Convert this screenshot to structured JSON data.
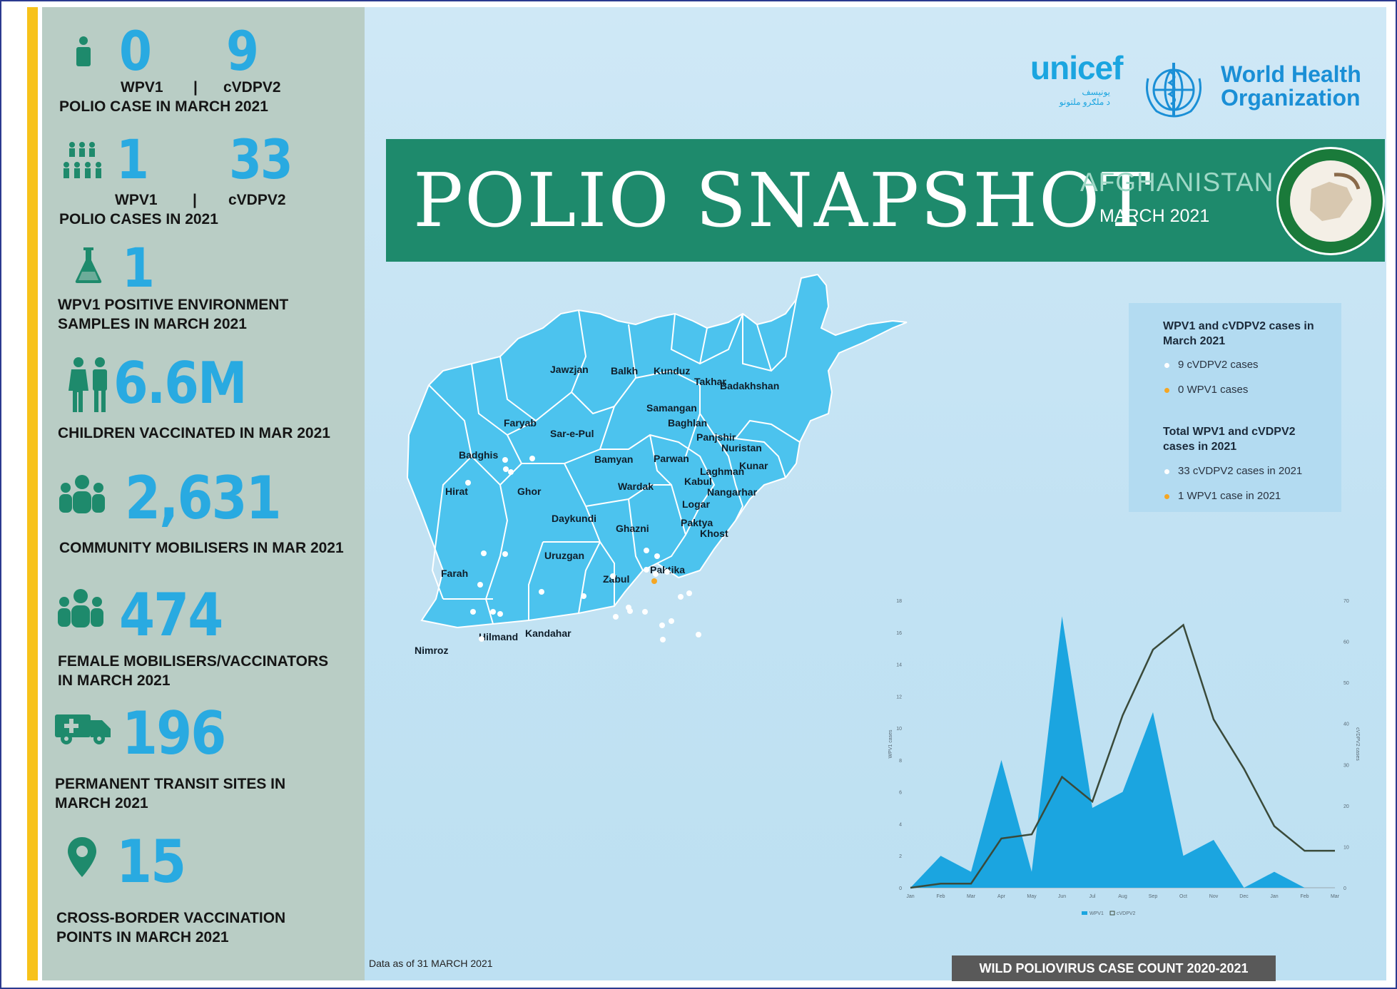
{
  "sidebar": {
    "stats": [
      {
        "a_value": "0",
        "a_label": "WPV1",
        "separator": "|",
        "b_value": "9",
        "b_label": "cVDPV2",
        "caption": "POLIO CASE IN MARCH 2021"
      },
      {
        "a_value": "1",
        "a_label": "WPV1",
        "separator": "|",
        "b_value": "33",
        "b_label": "cVDPV2",
        "caption": "POLIO CASES IN 2021"
      },
      {
        "value": "1",
        "caption_line1": "WPV1 POSITIVE ENVIRONMENT",
        "caption_line2": "SAMPLES IN MARCH 2021"
      },
      {
        "value": "6.6M",
        "caption": "CHILDREN VACCINATED IN MAR 2021"
      },
      {
        "value": "2,631",
        "caption": "COMMUNITY MOBILISERS IN MAR 2021"
      },
      {
        "value": "474",
        "caption_line1": "FEMALE MOBILISERS/VACCINATORS",
        "caption_line2": "IN MARCH 2021"
      },
      {
        "value": "196",
        "caption_line1": "PERMANENT TRANSIT SITES IN",
        "caption_line2": "MARCH 2021"
      },
      {
        "value": "15",
        "caption_line1": "CROSS-BORDER VACCINATION",
        "caption_line2": "POINTS IN MARCH 2021"
      }
    ]
  },
  "logos": {
    "unicef": "unicef",
    "unicef_sub_line1": "یونیسف",
    "unicef_sub_line2": "د ملګرو ملتونو",
    "who_line1": "World Health",
    "who_line2": "Organization"
  },
  "banner": {
    "title": "POLIO SNAPSHOT",
    "country": "AFGHANISTAN",
    "date": "MARCH 2021"
  },
  "legend": {
    "march_title_line1": "WPV1 and cVDPV2 cases in",
    "march_title_line2": "March 2021",
    "march_cvdpv2": "9 cVDPV2 cases",
    "march_wpv1": "0 WPV1 cases",
    "total_title_line1": "Total WPV1 and cVDPV2",
    "total_title_line2": "cases in 2021",
    "total_cvdpv2": "33 cVDPV2 cases in 2021",
    "total_wpv1": "1 WPV1 case in 2021",
    "white_dot": "#ffffff",
    "orange_dot": "#f5a623"
  },
  "map": {
    "fill_color": "#4cc3ee",
    "provinces": [
      "Jawzjan",
      "Balkh",
      "Kunduz",
      "Takhar",
      "Badakhshan",
      "Samangan",
      "Faryab",
      "Sar-e-Pul",
      "Baghlan",
      "Panjshir",
      "Badghis",
      "Nuristan",
      "Bamyan",
      "Parwan",
      "Kunar",
      "Laghman",
      "Hirat",
      "Ghor",
      "Wardak",
      "Kabul",
      "Nangarhar",
      "Logar",
      "Daykundi",
      "Ghazni",
      "Paktya",
      "Khost",
      "Uruzgan",
      "Farah",
      "Zabul",
      "Paktika",
      "Hilmand",
      "Kandahar",
      "Nimroz"
    ]
  },
  "chart_data": {
    "type": "area",
    "categories": [
      "Jan",
      "Feb",
      "Mar",
      "Apr",
      "May",
      "Jun",
      "Jul",
      "Aug",
      "Sep",
      "Oct",
      "Nov",
      "Dec",
      "Jan",
      "Feb",
      "Mar"
    ],
    "series": [
      {
        "name": "WPV1",
        "kind": "area",
        "axis": "left",
        "color": "#1ba5e0",
        "values": [
          0,
          2,
          1,
          8,
          1,
          17,
          5,
          6,
          11,
          2,
          3,
          0,
          1,
          0,
          0
        ]
      },
      {
        "name": "cVDPV2",
        "kind": "line",
        "axis": "right",
        "color": "#3a4a3a",
        "values": [
          0,
          1,
          1,
          12,
          13,
          27,
          21,
          42,
          58,
          64,
          41,
          29,
          15,
          9,
          9
        ]
      }
    ],
    "ylabel": "WPV1 cases",
    "y2label": "cVDPV2 cases",
    "yticks": [
      "0",
      "2",
      "4",
      "6",
      "8",
      "10",
      "12",
      "14",
      "16",
      "18"
    ],
    "y2ticks": [
      "0",
      "10",
      "20",
      "30",
      "40",
      "50",
      "60",
      "70"
    ],
    "ylim": [
      0,
      18
    ],
    "y2lim": [
      0,
      70
    ],
    "legend": [
      "WPV1",
      "cVDPV2"
    ]
  },
  "footer": {
    "note": "Data as of 31 MARCH 2021",
    "chart_title": "WILD POLIOVIRUS CASE COUNT 2020-2021"
  }
}
